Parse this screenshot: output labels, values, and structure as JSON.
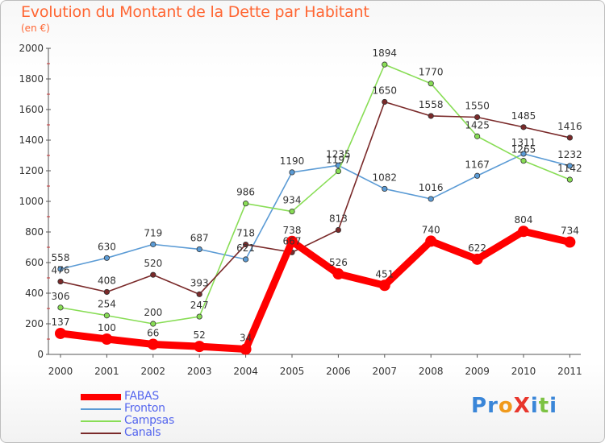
{
  "title": "Evolution du Montant de la Dette par Habitant",
  "subtitle": "(en €)",
  "logo": {
    "text": "ProXiti",
    "letters": [
      {
        "ch": "P",
        "color": "#3a86d8"
      },
      {
        "ch": "r",
        "color": "#3a86d8"
      },
      {
        "ch": "o",
        "color": "#f09a1c"
      },
      {
        "ch": "X",
        "color": "#e8362c"
      },
      {
        "ch": "i",
        "color": "#3a86d8"
      },
      {
        "ch": "t",
        "color": "#7cc242"
      },
      {
        "ch": "i",
        "color": "#3a86d8"
      }
    ]
  },
  "chart_data": {
    "type": "line",
    "title": "Evolution du Montant de la Dette par Habitant",
    "subtitle": "(en €)",
    "categories": [
      "2000",
      "2001",
      "2002",
      "2003",
      "2004",
      "2005",
      "2006",
      "2007",
      "2008",
      "2009",
      "2010",
      "2011"
    ],
    "ylim": [
      0,
      2000
    ],
    "yticks": [
      "0",
      "200",
      "400",
      "600",
      "800",
      "1000",
      "1200",
      "1400",
      "1600",
      "1800",
      "2000"
    ],
    "grid": false,
    "legend_position": "bottom-left",
    "series": [
      {
        "name": "FABAS",
        "color": "#ff0000",
        "emphasis": true,
        "values": [
          137,
          100,
          66,
          52,
          34,
          738,
          526,
          451,
          740,
          622,
          804,
          734
        ],
        "labels": [
          "137",
          "100",
          "66",
          "52",
          "34",
          "738",
          "526",
          "451",
          "740",
          "622",
          "804",
          "734"
        ]
      },
      {
        "name": "Fronton",
        "color": "#5b9bd5",
        "values": [
          558,
          630,
          719,
          687,
          621,
          1190,
          1235,
          1082,
          1016,
          1167,
          1311,
          1232
        ],
        "labels": [
          "558",
          "630",
          "719",
          "687",
          "621",
          "1190",
          "1235",
          "1082",
          "1016",
          "1167",
          "1311",
          "1232"
        ]
      },
      {
        "name": "Campsas",
        "color": "#88dd55",
        "values": [
          306,
          254,
          200,
          247,
          986,
          934,
          1197,
          1894,
          1770,
          1425,
          1265,
          1142
        ],
        "labels": [
          "306",
          "254",
          "200",
          "247",
          "986",
          "934",
          "1197",
          "1894",
          "1770",
          "1425",
          "1265",
          "1142"
        ]
      },
      {
        "name": "Canals",
        "color": "#7a2a2a",
        "values": [
          476,
          408,
          520,
          393,
          718,
          667,
          813,
          1650,
          1558,
          1550,
          1485,
          1416
        ],
        "labels": [
          "476",
          "408",
          "520",
          "393",
          "718",
          "667",
          "813",
          "1650",
          "1558",
          "1550",
          "1485",
          "1416"
        ]
      }
    ]
  }
}
